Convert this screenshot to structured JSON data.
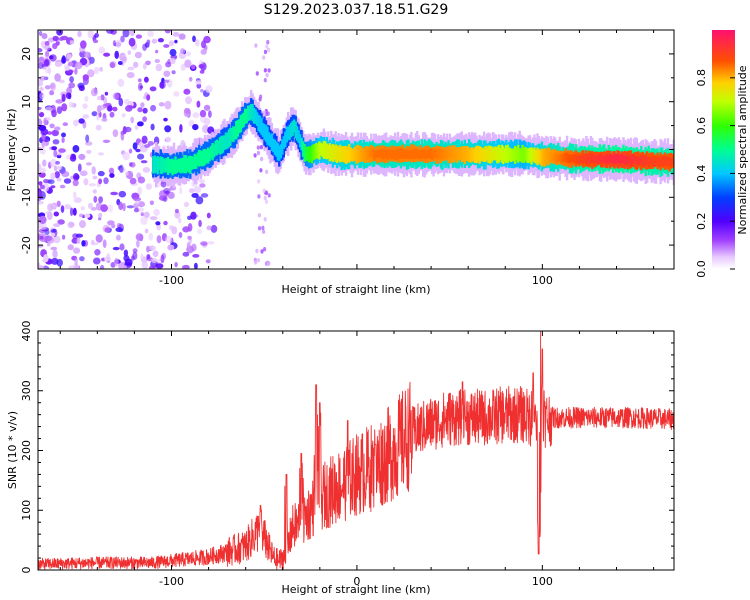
{
  "title": "S129.2023.037.18.51.G29",
  "chart_data": [
    {
      "type": "heatmap",
      "name": "spectrogram",
      "xlabel": "Height of straight line (km)",
      "ylabel": "Frequency (Hz)",
      "xlim": [
        -172,
        171
      ],
      "ylim": [
        -25,
        25
      ],
      "x_ticks": [
        -100,
        0,
        100
      ],
      "x_tick_labels": [
        "-100",
        "",
        "100"
      ],
      "y_ticks": [
        -20,
        -10,
        0,
        10,
        20
      ],
      "colorbar": {
        "label": "Normalized spectral amplitude",
        "range": [
          0,
          1
        ],
        "ticks": [
          0.0,
          0.2,
          0.4,
          0.6,
          0.8
        ],
        "tick_labels": [
          "0.0",
          "0.2",
          "0.4",
          "0.6",
          "0.8"
        ]
      },
      "ridge": {
        "x": [
          -110,
          -100,
          -90,
          -80,
          -70,
          -65,
          -60,
          -57,
          -52,
          -47,
          -42,
          -38,
          -34,
          -31,
          -28,
          -25,
          -20,
          -10,
          0,
          10,
          20,
          40,
          60,
          80,
          90,
          100,
          120,
          140,
          160,
          171
        ],
        "freq": [
          -3,
          -3.5,
          -3,
          -1,
          2,
          4,
          7,
          8,
          5,
          2,
          -1,
          3,
          5,
          2,
          -1,
          -1,
          0,
          -1,
          -1,
          -1,
          -1,
          -1,
          -1,
          -1,
          -1,
          -1.5,
          -2,
          -2,
          -2.5,
          -2.5
        ],
        "amplitude": [
          0.45,
          0.5,
          0.5,
          0.5,
          0.45,
          0.5,
          0.5,
          0.45,
          0.4,
          0.4,
          0.4,
          0.4,
          0.45,
          0.4,
          0.55,
          0.6,
          0.7,
          0.75,
          0.8,
          0.85,
          0.85,
          0.85,
          0.8,
          0.7,
          0.65,
          0.8,
          0.9,
          0.95,
          0.9,
          0.9
        ]
      }
    },
    {
      "type": "line",
      "name": "snr",
      "xlabel": "Height of straight line (km)",
      "ylabel": "SNR (10 * v/v)",
      "xlim": [
        -172,
        171
      ],
      "ylim": [
        0,
        400
      ],
      "x_ticks": [
        -100,
        0,
        100
      ],
      "x_tick_labels": [
        "-100",
        "0",
        "100"
      ],
      "y_ticks": [
        0,
        100,
        200,
        300,
        400
      ],
      "color": "#f03030",
      "envelope": {
        "x": [
          -172,
          -140,
          -110,
          -80,
          -70,
          -60,
          -55,
          -52,
          -48,
          -45,
          -42,
          -38,
          -35,
          -30,
          -25,
          -20,
          -10,
          0,
          10,
          20,
          30,
          40,
          50,
          60,
          70,
          80,
          90,
          95,
          100,
          105,
          110,
          130,
          150,
          171
        ],
        "snr": [
          10,
          12,
          12,
          22,
          30,
          40,
          60,
          70,
          40,
          20,
          15,
          25,
          70,
          80,
          100,
          120,
          140,
          160,
          175,
          200,
          230,
          245,
          255,
          255,
          255,
          260,
          260,
          250,
          250,
          255,
          255,
          255,
          255,
          252
        ]
      },
      "spikes": [
        {
          "x": -52,
          "snr": 108
        },
        {
          "x": -38,
          "snr": 160
        },
        {
          "x": -30,
          "snr": 195
        },
        {
          "x": -22,
          "snr": 310
        },
        {
          "x": -20,
          "snr": 280
        },
        {
          "x": -5,
          "snr": 250
        },
        {
          "x": 10,
          "snr": 210
        },
        {
          "x": 57,
          "snr": 315
        },
        {
          "x": 95,
          "snr": 330
        },
        {
          "x": 99,
          "snr": 400
        },
        {
          "x": 100,
          "snr": 370
        },
        {
          "x": 98,
          "snr": 27
        }
      ]
    }
  ]
}
